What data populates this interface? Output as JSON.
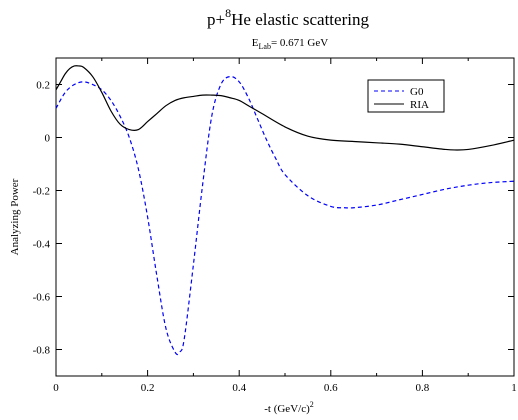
{
  "chart_data": {
    "type": "line",
    "title": {
      "prefix": "p+",
      "superscript": "8",
      "suffix": "He elastic scattering"
    },
    "subtitle": {
      "main": "E",
      "subscript": "Lab",
      "suffix": "= 0.671 GeV"
    },
    "xlabel": {
      "main": "-t (GeV/c)",
      "superscript": "2"
    },
    "ylabel": "Analyzing Power",
    "xlim": [
      0,
      1
    ],
    "ylim": [
      -0.9,
      0.3
    ],
    "xticks": [
      0,
      0.2,
      0.4,
      0.6,
      0.8,
      1
    ],
    "xtick_labels": [
      "0",
      "0.2",
      "0.4",
      "0.6",
      "0.8",
      "1"
    ],
    "yticks": [
      -0.8,
      -0.6,
      -0.4,
      -0.2,
      0,
      0.2
    ],
    "ytick_labels": [
      "-0.8",
      "-0.6",
      "-0.4",
      "-0.2",
      "0",
      "0.2"
    ],
    "grid": false,
    "legend_position": "top-right",
    "series": [
      {
        "name": "G0",
        "color": "#0000ff",
        "style": "dashed",
        "x": [
          0,
          0.02,
          0.04,
          0.06,
          0.08,
          0.1,
          0.12,
          0.14,
          0.16,
          0.18,
          0.2,
          0.22,
          0.24,
          0.26,
          0.27,
          0.28,
          0.3,
          0.32,
          0.34,
          0.36,
          0.38,
          0.4,
          0.42,
          0.44,
          0.46,
          0.48,
          0.5,
          0.55,
          0.6,
          0.63,
          0.65,
          0.7,
          0.75,
          0.8,
          0.85,
          0.9,
          0.95,
          1.0
        ],
        "y": [
          0.11,
          0.17,
          0.2,
          0.21,
          0.2,
          0.18,
          0.14,
          0.08,
          0.0,
          -0.12,
          -0.3,
          -0.52,
          -0.72,
          -0.81,
          -0.81,
          -0.76,
          -0.48,
          -0.18,
          0.08,
          0.2,
          0.23,
          0.21,
          0.15,
          0.07,
          -0.01,
          -0.08,
          -0.14,
          -0.22,
          -0.26,
          -0.265,
          -0.265,
          -0.255,
          -0.235,
          -0.215,
          -0.195,
          -0.18,
          -0.17,
          -0.165
        ]
      },
      {
        "name": "RIA",
        "color": "#000000",
        "style": "solid",
        "x": [
          0,
          0.01,
          0.02,
          0.03,
          0.04,
          0.05,
          0.06,
          0.08,
          0.1,
          0.12,
          0.14,
          0.16,
          0.18,
          0.2,
          0.22,
          0.24,
          0.26,
          0.28,
          0.3,
          0.32,
          0.34,
          0.36,
          0.38,
          0.4,
          0.42,
          0.45,
          0.5,
          0.55,
          0.6,
          0.65,
          0.7,
          0.75,
          0.8,
          0.85,
          0.87,
          0.9,
          0.95,
          1.0
        ],
        "y": [
          0.18,
          0.21,
          0.24,
          0.26,
          0.27,
          0.27,
          0.265,
          0.23,
          0.17,
          0.1,
          0.05,
          0.03,
          0.03,
          0.06,
          0.09,
          0.12,
          0.14,
          0.15,
          0.155,
          0.16,
          0.16,
          0.158,
          0.15,
          0.14,
          0.12,
          0.09,
          0.04,
          0.005,
          -0.01,
          -0.015,
          -0.02,
          -0.025,
          -0.035,
          -0.045,
          -0.047,
          -0.045,
          -0.03,
          -0.01
        ]
      }
    ]
  }
}
